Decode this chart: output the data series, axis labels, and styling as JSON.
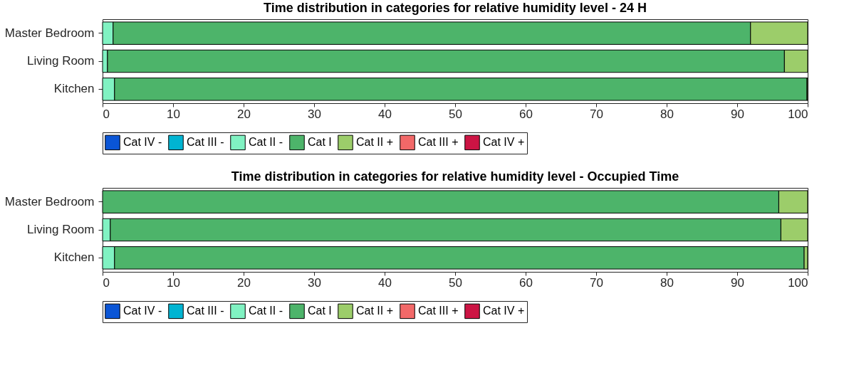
{
  "chart_data": [
    {
      "type": "bar",
      "orientation": "horizontal",
      "stacked": true,
      "title": "Time distribution in categories for relative humidity level - 24 H",
      "categories": [
        "Master Bedroom",
        "Living Room",
        "Kitchen"
      ],
      "xlim": [
        0,
        100
      ],
      "xticks": [
        0,
        10,
        20,
        30,
        40,
        50,
        60,
        70,
        80,
        90,
        100
      ],
      "grid": false,
      "legend": "bottom",
      "series": [
        {
          "name": "Cat IV -",
          "color": "#0a55d6",
          "values": [
            0,
            0,
            0
          ]
        },
        {
          "name": "Cat III -",
          "color": "#00b4d2",
          "values": [
            0,
            0,
            0
          ]
        },
        {
          "name": "Cat II -",
          "color": "#80f2c2",
          "values": [
            1.5,
            0.7,
            1.7
          ]
        },
        {
          "name": "Cat I",
          "color": "#4db46a",
          "values": [
            90.4,
            96.0,
            98.2
          ]
        },
        {
          "name": "Cat II +",
          "color": "#9ccd6a",
          "values": [
            8.1,
            3.3,
            0.1
          ]
        },
        {
          "name": "Cat III +",
          "color": "#f26868",
          "values": [
            0,
            0,
            0
          ]
        },
        {
          "name": "Cat IV +",
          "color": "#cc1444",
          "values": [
            0,
            0,
            0
          ]
        }
      ]
    },
    {
      "type": "bar",
      "orientation": "horizontal",
      "stacked": true,
      "title": "Time distribution in categories for relative humidity level - Occupied Time",
      "categories": [
        "Master Bedroom",
        "Living Room",
        "Kitchen"
      ],
      "xlim": [
        0,
        100
      ],
      "xticks": [
        0,
        10,
        20,
        30,
        40,
        50,
        60,
        70,
        80,
        90,
        100
      ],
      "grid": false,
      "legend": "bottom",
      "series": [
        {
          "name": "Cat IV -",
          "color": "#0a55d6",
          "values": [
            0,
            0,
            0
          ]
        },
        {
          "name": "Cat III -",
          "color": "#00b4d2",
          "values": [
            0,
            0,
            0
          ]
        },
        {
          "name": "Cat II -",
          "color": "#80f2c2",
          "values": [
            0,
            1.1,
            1.7
          ]
        },
        {
          "name": "Cat I",
          "color": "#4db46a",
          "values": [
            95.9,
            95.1,
            97.8
          ]
        },
        {
          "name": "Cat II +",
          "color": "#9ccd6a",
          "values": [
            4.1,
            3.8,
            0.5
          ]
        },
        {
          "name": "Cat III +",
          "color": "#f26868",
          "values": [
            0,
            0,
            0
          ]
        },
        {
          "name": "Cat IV +",
          "color": "#cc1444",
          "values": [
            0,
            0,
            0
          ]
        }
      ]
    }
  ]
}
